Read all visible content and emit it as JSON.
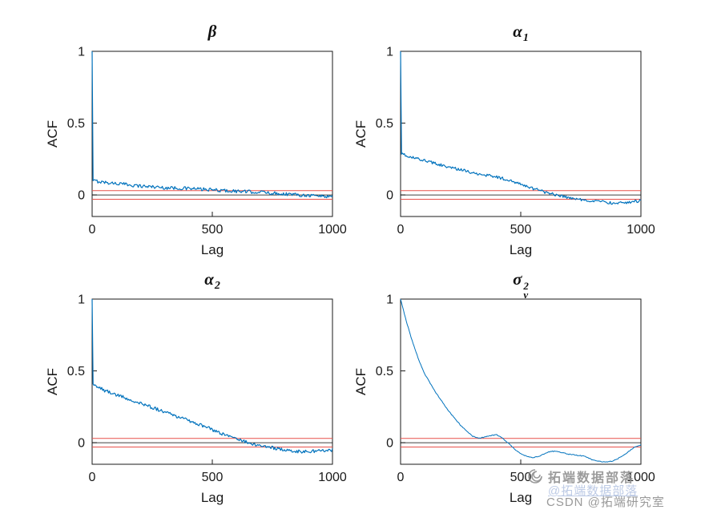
{
  "figure": {
    "background": "#ffffff"
  },
  "chart_data": [
    {
      "type": "line",
      "name": "beta",
      "title": {
        "base": "β",
        "sup": "",
        "sub": ""
      },
      "xlabel": "Lag",
      "ylabel": "ACF",
      "xlim": [
        0,
        1000
      ],
      "ylim": [
        -0.15,
        1
      ],
      "xticks": [
        0,
        500,
        1000
      ],
      "yticks": [
        0,
        0.5,
        1
      ],
      "confidence_bounds": [
        0.03,
        -0.03
      ],
      "zero_line": 0,
      "line_color": "#0072BD",
      "bound_color": "#E8504A",
      "axis_color": "#1a1a1a",
      "line_width": 1.2,
      "noise_amplitude": 0.012,
      "keypoints": [
        [
          0,
          1
        ],
        [
          3,
          0.1
        ],
        [
          50,
          0.088
        ],
        [
          100,
          0.08
        ],
        [
          150,
          0.072
        ],
        [
          200,
          0.062
        ],
        [
          250,
          0.058
        ],
        [
          300,
          0.05
        ],
        [
          350,
          0.048
        ],
        [
          400,
          0.045
        ],
        [
          450,
          0.04
        ],
        [
          500,
          0.035
        ],
        [
          550,
          0.03
        ],
        [
          600,
          0.026
        ],
        [
          650,
          0.022
        ],
        [
          700,
          0.02
        ],
        [
          750,
          0.012
        ],
        [
          800,
          0.008
        ],
        [
          850,
          0.002
        ],
        [
          900,
          -0.002
        ],
        [
          950,
          -0.008
        ],
        [
          1000,
          -0.01
        ]
      ]
    },
    {
      "type": "line",
      "name": "alpha_1",
      "title": {
        "base": "α",
        "sup": "",
        "sub": "1"
      },
      "xlabel": "Lag",
      "ylabel": "ACF",
      "xlim": [
        0,
        1000
      ],
      "ylim": [
        -0.15,
        1
      ],
      "xticks": [
        0,
        500,
        1000
      ],
      "yticks": [
        0,
        0.5,
        1
      ],
      "confidence_bounds": [
        0.03,
        -0.03
      ],
      "zero_line": 0,
      "line_color": "#0072BD",
      "bound_color": "#E8504A",
      "axis_color": "#1a1a1a",
      "line_width": 1.2,
      "noise_amplitude": 0.01,
      "keypoints": [
        [
          0,
          1
        ],
        [
          3,
          0.285
        ],
        [
          50,
          0.26
        ],
        [
          100,
          0.24
        ],
        [
          150,
          0.215
        ],
        [
          200,
          0.195
        ],
        [
          250,
          0.175
        ],
        [
          300,
          0.155
        ],
        [
          350,
          0.14
        ],
        [
          400,
          0.125
        ],
        [
          450,
          0.105
        ],
        [
          500,
          0.075
        ],
        [
          550,
          0.045
        ],
        [
          600,
          0.02
        ],
        [
          650,
          0.0
        ],
        [
          700,
          -0.02
        ],
        [
          750,
          -0.032
        ],
        [
          800,
          -0.042
        ],
        [
          850,
          -0.05
        ],
        [
          900,
          -0.06
        ],
        [
          950,
          -0.05
        ],
        [
          1000,
          -0.04
        ]
      ]
    },
    {
      "type": "line",
      "name": "alpha_2",
      "title": {
        "base": "α",
        "sup": "",
        "sub": "2"
      },
      "xlabel": "Lag",
      "ylabel": "ACF",
      "xlim": [
        0,
        1000
      ],
      "ylim": [
        -0.15,
        1
      ],
      "xticks": [
        0,
        500,
        1000
      ],
      "yticks": [
        0,
        0.5,
        1
      ],
      "confidence_bounds": [
        0.03,
        -0.03
      ],
      "zero_line": 0,
      "line_color": "#0072BD",
      "bound_color": "#E8504A",
      "axis_color": "#1a1a1a",
      "line_width": 1.2,
      "noise_amplitude": 0.011,
      "keypoints": [
        [
          0,
          1
        ],
        [
          3,
          0.41
        ],
        [
          50,
          0.365
        ],
        [
          100,
          0.335
        ],
        [
          150,
          0.305
        ],
        [
          200,
          0.275
        ],
        [
          250,
          0.245
        ],
        [
          300,
          0.215
        ],
        [
          350,
          0.185
        ],
        [
          400,
          0.155
        ],
        [
          450,
          0.125
        ],
        [
          500,
          0.09
        ],
        [
          550,
          0.055
        ],
        [
          600,
          0.025
        ],
        [
          650,
          0.0
        ],
        [
          700,
          -0.02
        ],
        [
          750,
          -0.035
        ],
        [
          800,
          -0.05
        ],
        [
          850,
          -0.06
        ],
        [
          900,
          -0.062
        ],
        [
          950,
          -0.055
        ],
        [
          1000,
          -0.05
        ]
      ]
    },
    {
      "type": "line",
      "name": "sigma_v_squared",
      "title": {
        "base": "σ",
        "sup": "2",
        "sub": "v"
      },
      "xlabel": "Lag",
      "ylabel": "ACF",
      "xlim": [
        0,
        1000
      ],
      "ylim": [
        -0.15,
        1
      ],
      "xticks": [
        0,
        500,
        1000
      ],
      "yticks": [
        0,
        0.5,
        1
      ],
      "confidence_bounds": [
        0.03,
        -0.03
      ],
      "zero_line": 0,
      "line_color": "#0072BD",
      "bound_color": "#E8504A",
      "axis_color": "#1a1a1a",
      "line_width": 1.0,
      "noise_amplitude": 0.003,
      "keypoints": [
        [
          0,
          1
        ],
        [
          25,
          0.84
        ],
        [
          50,
          0.7
        ],
        [
          75,
          0.58
        ],
        [
          100,
          0.48
        ],
        [
          125,
          0.41
        ],
        [
          150,
          0.34
        ],
        [
          175,
          0.28
        ],
        [
          200,
          0.22
        ],
        [
          225,
          0.17
        ],
        [
          250,
          0.12
        ],
        [
          275,
          0.08
        ],
        [
          300,
          0.045
        ],
        [
          325,
          0.03
        ],
        [
          350,
          0.04
        ],
        [
          375,
          0.05
        ],
        [
          400,
          0.055
        ],
        [
          425,
          0.03
        ],
        [
          450,
          -0.005
        ],
        [
          475,
          -0.045
        ],
        [
          500,
          -0.075
        ],
        [
          525,
          -0.095
        ],
        [
          550,
          -0.105
        ],
        [
          575,
          -0.095
        ],
        [
          600,
          -0.075
        ],
        [
          625,
          -0.06
        ],
        [
          650,
          -0.06
        ],
        [
          675,
          -0.07
        ],
        [
          700,
          -0.08
        ],
        [
          725,
          -0.085
        ],
        [
          750,
          -0.09
        ],
        [
          775,
          -0.1
        ],
        [
          800,
          -0.12
        ],
        [
          825,
          -0.13
        ],
        [
          850,
          -0.135
        ],
        [
          875,
          -0.13
        ],
        [
          900,
          -0.115
        ],
        [
          925,
          -0.09
        ],
        [
          950,
          -0.06
        ],
        [
          975,
          -0.03
        ],
        [
          1000,
          -0.015
        ]
      ]
    }
  ],
  "watermark": {
    "brand": "拓端数据部落",
    "credit": "CSDN @拓端研究室",
    "faint": "@拓端数据部落"
  }
}
